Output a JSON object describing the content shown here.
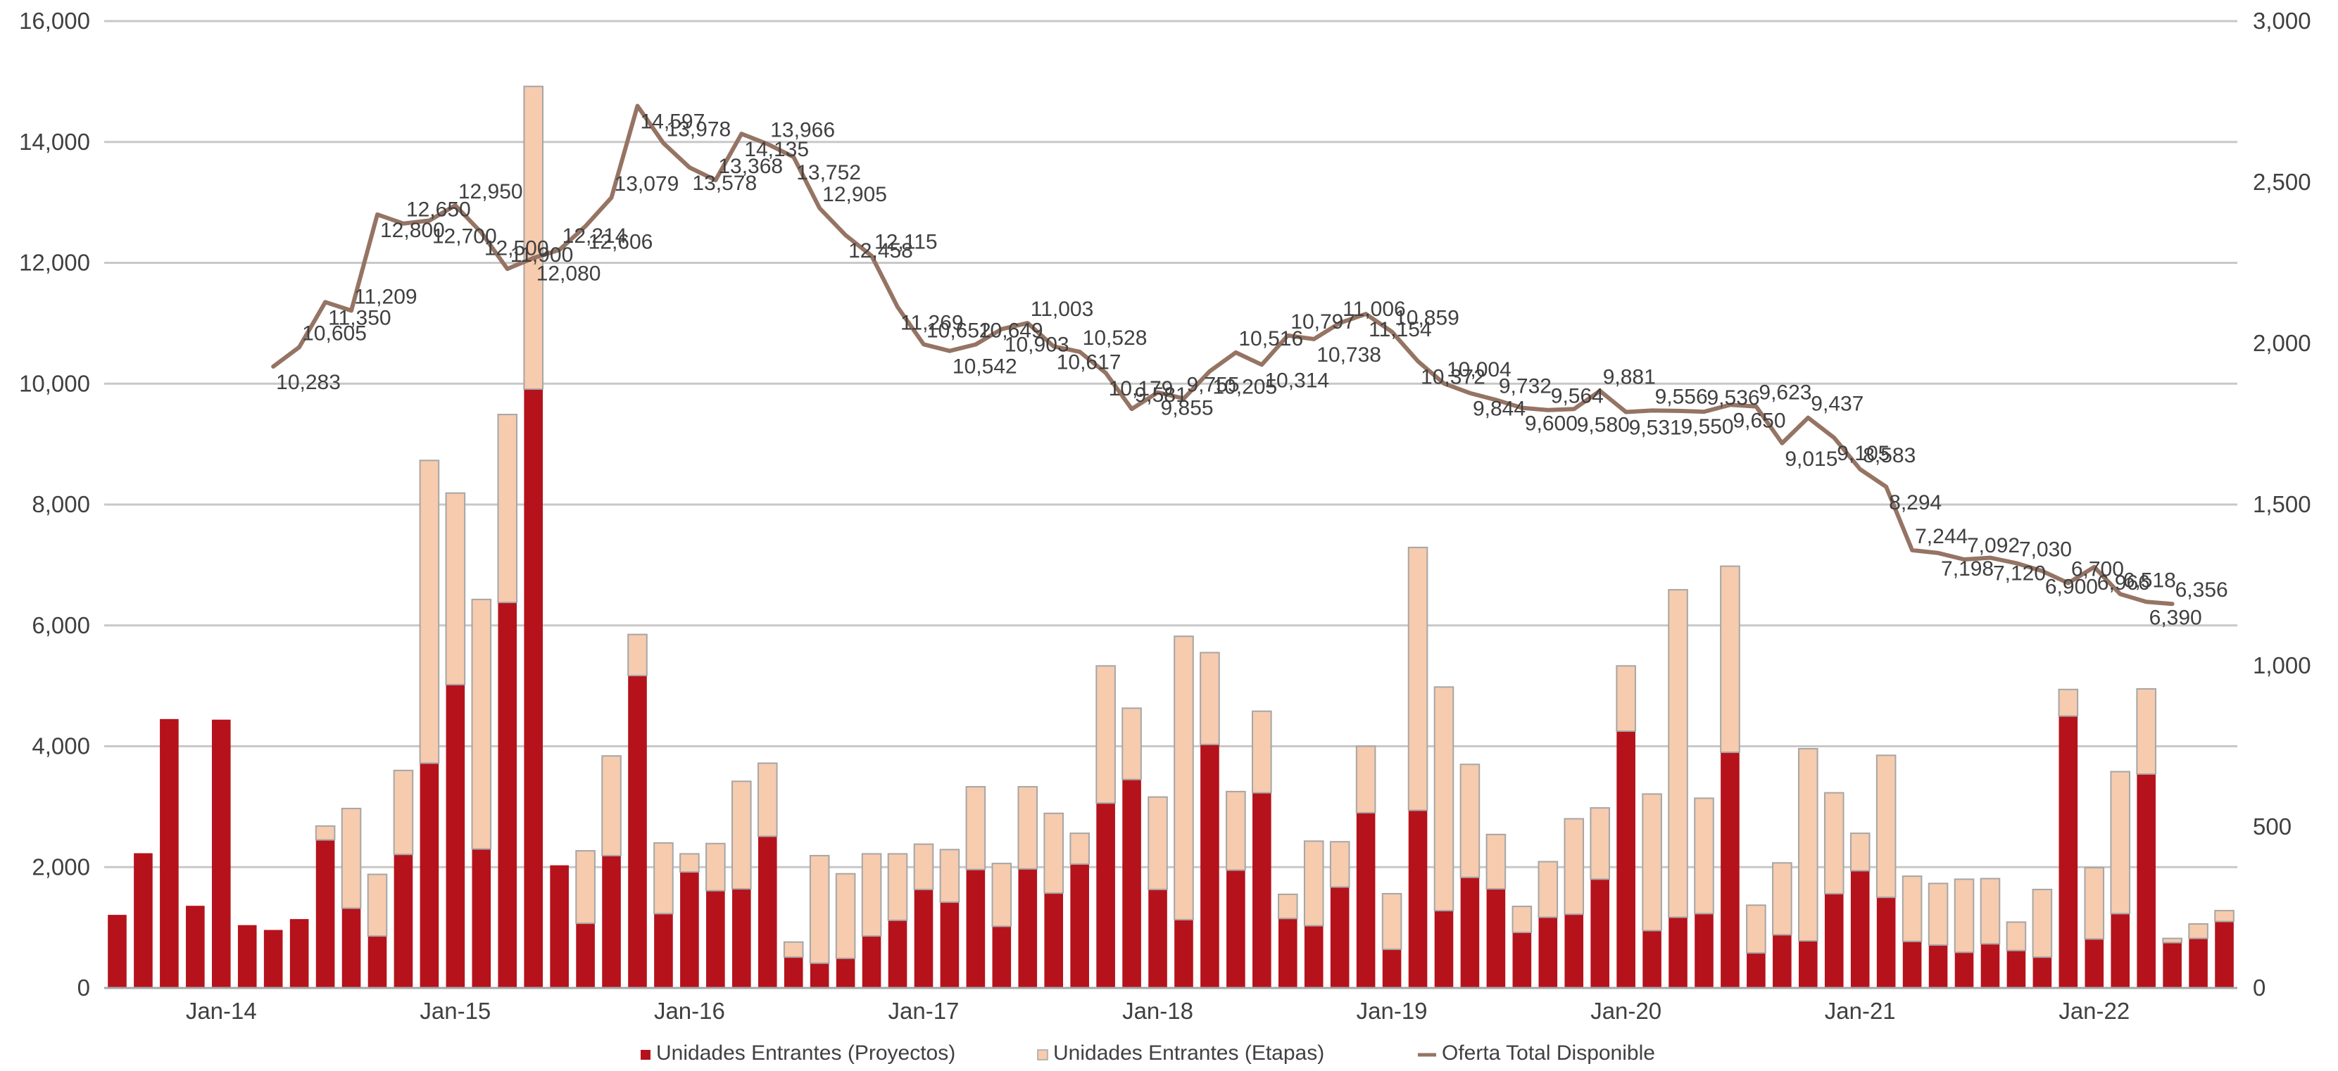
{
  "chart_data": {
    "type": "bar",
    "title": "",
    "xlabel": "",
    "ylabel": "",
    "ylim_left": [
      0,
      16000
    ],
    "ylim_right": [
      0,
      3000
    ],
    "yticks_left": [
      "0",
      "2,000",
      "4,000",
      "6,000",
      "8,000",
      "10,000",
      "12,000",
      "14,000",
      "16,000"
    ],
    "yticks_right": [
      "0",
      "500",
      "1,000",
      "1,500",
      "2,000",
      "2,500",
      "3,000"
    ],
    "x_tick_labels": [
      {
        "index": 4,
        "label": "Jan-14"
      },
      {
        "index": 13,
        "label": "Jan-15"
      },
      {
        "index": 22,
        "label": "Jan-16"
      },
      {
        "index": 31,
        "label": "Jan-17"
      },
      {
        "index": 40,
        "label": "Jan-18"
      },
      {
        "index": 49,
        "label": "Jan-19"
      },
      {
        "index": 58,
        "label": "Jan-20"
      },
      {
        "index": 67,
        "label": "Jan-21"
      },
      {
        "index": 76,
        "label": "Jan-22"
      }
    ],
    "grid": true,
    "legend_position": "bottom",
    "colors": {
      "proyectos": "#B5121B",
      "etapas": "#F6CBAE",
      "etapas_edge": "#A6A6A6",
      "oferta": "#957464",
      "grid": "#C8C8C8"
    },
    "series": [
      {
        "name": "Unidades Entrantes (Proyectos)",
        "axis": "left",
        "values": [
          1210,
          2230,
          4450,
          1360,
          4440,
          1040,
          960,
          1140,
          2450,
          1320,
          860,
          2210,
          3720,
          5020,
          2300,
          6380,
          9910,
          2030,
          1070,
          2190,
          5170,
          1230,
          1920,
          1610,
          1640,
          2510,
          510,
          410,
          490,
          860,
          1120,
          1630,
          1420,
          1960,
          1020,
          1970,
          1570,
          2050,
          3060,
          3450,
          1630,
          1130,
          4030,
          1950,
          3230,
          1150,
          1030,
          1670,
          2900,
          640,
          2940,
          1280,
          1830,
          1640,
          920,
          1170,
          1220,
          1800,
          4250,
          950,
          1170,
          1230,
          3900,
          580,
          880,
          780,
          1560,
          1940,
          1500,
          770,
          710,
          590,
          730,
          620,
          510,
          4500,
          810,
          1230,
          3540,
          750,
          820,
          1100
        ]
      },
      {
        "name": "Unidades Entrantes (Etapas)",
        "axis": "left",
        "values": [
          0,
          0,
          0,
          0,
          0,
          0,
          0,
          0,
          230,
          1650,
          1020,
          1390,
          5010,
          3170,
          4130,
          3110,
          5010,
          0,
          1200,
          1650,
          680,
          1170,
          300,
          780,
          1780,
          1210,
          250,
          1780,
          1400,
          1360,
          1100,
          750,
          870,
          1370,
          1040,
          1360,
          1320,
          510,
          2270,
          1180,
          1530,
          4690,
          1520,
          1300,
          1350,
          400,
          1400,
          750,
          1100,
          920,
          4350,
          3700,
          1870,
          900,
          430,
          920,
          1580,
          1180,
          1080,
          2260,
          5420,
          1910,
          3080,
          790,
          1190,
          3180,
          1670,
          620,
          2350,
          1080,
          1020,
          1210,
          1080,
          470,
          1120,
          440,
          1180,
          2350,
          1410,
          70,
          240,
          180
        ]
      },
      {
        "name": "Oferta Total Disponible",
        "axis": "right",
        "values": [
          10283,
          10605,
          11350,
          11209,
          12800,
          12650,
          12700,
          12950,
          12500,
          11900,
          12080,
          12214,
          12606,
          13079,
          14597,
          13978,
          13578,
          13368,
          14135,
          13966,
          13752,
          12905,
          12458,
          12115,
          11269,
          10652,
          10542,
          10649,
          10903,
          11003,
          10617,
          10528,
          10179,
          9581,
          9855,
          9755,
          10205,
          10516,
          10314,
          10797,
          10738,
          11006,
          11154,
          10859,
          10372,
          10004,
          9844,
          9732,
          9600,
          9564,
          9580,
          9881,
          9531,
          9556,
          9550,
          9536,
          9650,
          9623,
          9015,
          9437,
          9105,
          8583,
          8294,
          7244,
          7198,
          7092,
          7120,
          7030,
          6900,
          6700,
          6966,
          6518,
          6390,
          6356
        ],
        "data_labels": [
          "10,283",
          "10,605",
          "11,350",
          "11,209",
          "12,800",
          "12,650",
          "12,700",
          "12,950",
          "12,500",
          "11,900",
          "12,080",
          "12,214",
          "12,606",
          "13,079",
          "14,597",
          "13,978",
          "13,578",
          "13,368",
          "14,135",
          "13,966",
          "13,752",
          "12,905",
          "12,458",
          "12,115",
          "11,269",
          "10,652",
          "10,542",
          "10,649",
          "10,903",
          "11,003",
          "10,617",
          "10,528",
          "10,179",
          "9,581",
          "9,855",
          "9,755",
          "10,205",
          "10,516",
          "10,314",
          "10,797",
          "10,738",
          "11,006",
          "11,154",
          "10,859",
          "10,372",
          "10,004",
          "9,844",
          "9,732",
          "9,600",
          "9,564",
          "9,580",
          "9,881",
          "9,531",
          "9,556",
          "9,550",
          "9,536",
          "9,650",
          "9,623",
          "9,015",
          "9,437",
          "9,105",
          "8,583",
          "8,294",
          "7,244",
          "7,198",
          "7,092",
          "7,120",
          "7,030",
          "6,900",
          "6,700",
          "6,966",
          "6,518",
          "6,390",
          "6,356"
        ]
      }
    ]
  },
  "legend": {
    "items": [
      {
        "label": "Unidades Entrantes (Proyectos)",
        "color": "#B5121B",
        "kind": "box"
      },
      {
        "label": "Unidades Entrantes (Etapas)",
        "color": "#F6CBAE",
        "kind": "box"
      },
      {
        "label": "Oferta Total Disponible",
        "color": "#957464",
        "kind": "line"
      }
    ]
  }
}
